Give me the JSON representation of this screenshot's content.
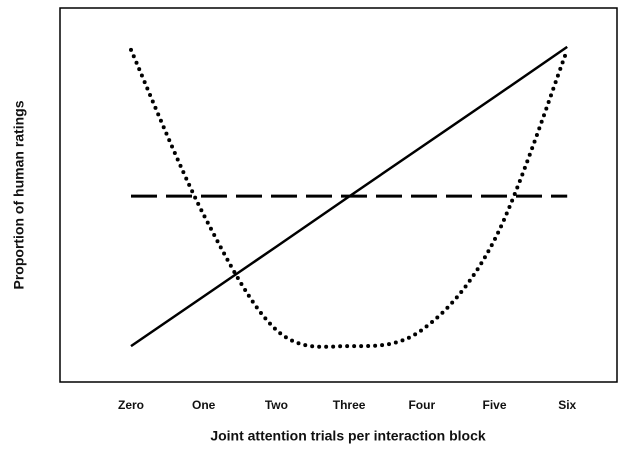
{
  "chart_data": {
    "type": "line",
    "x_label": "Joint attention trials per interaction block",
    "y_label": "Proportion of human ratings",
    "categories": [
      "Zero",
      "One",
      "Two",
      "Three",
      "Four",
      "Five",
      "Six"
    ],
    "ylim": [
      0,
      1
    ],
    "series": [
      {
        "color": "#000000",
        "style": "solid",
        "values": [
          0.096,
          0.229,
          0.362,
          0.496,
          0.629,
          0.762,
          0.896
        ]
      },
      {
        "color": "#000000",
        "style": "dashed",
        "values": [
          0.497,
          0.497,
          0.497,
          0.497,
          0.497,
          0.497,
          0.497
        ]
      },
      {
        "color": "#000000",
        "style": "dotted",
        "values": [
          0.888,
          0.447,
          0.139,
          0.096,
          0.139,
          0.38,
          0.888
        ]
      }
    ]
  }
}
